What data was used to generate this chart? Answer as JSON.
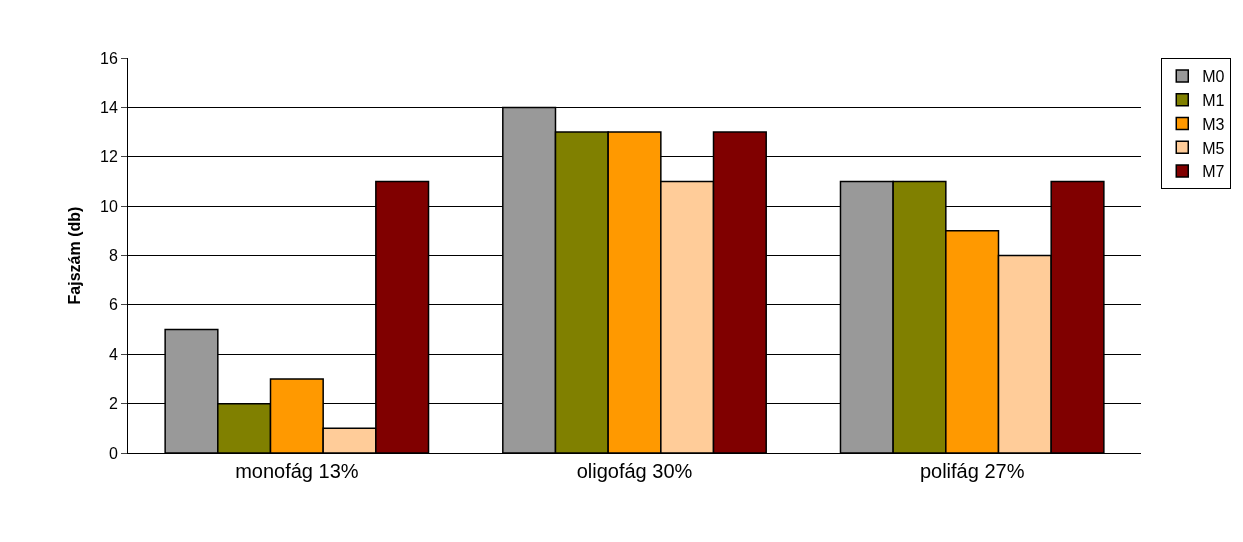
{
  "chart_data": {
    "type": "bar",
    "ylabel": "Fajszám (db)",
    "categories": [
      "monofág 13%",
      "oligofág 30%",
      "polifág 27%"
    ],
    "series": [
      {
        "name": "M0",
        "color": "#999999",
        "values": [
          5,
          14,
          11
        ]
      },
      {
        "name": "M1",
        "color": "#808000",
        "values": [
          2,
          13,
          11
        ]
      },
      {
        "name": "M3",
        "color": "#ff9900",
        "values": [
          3,
          13,
          9
        ]
      },
      {
        "name": "M5",
        "color": "#ffcc99",
        "values": [
          1,
          11,
          8
        ]
      },
      {
        "name": "M7",
        "color": "#800000",
        "values": [
          11,
          13,
          11
        ]
      }
    ],
    "ylim": [
      0,
      16
    ],
    "yticks": [
      0,
      2,
      4,
      6,
      8,
      10,
      12,
      14,
      16
    ],
    "grid": "y",
    "legend": "right"
  }
}
